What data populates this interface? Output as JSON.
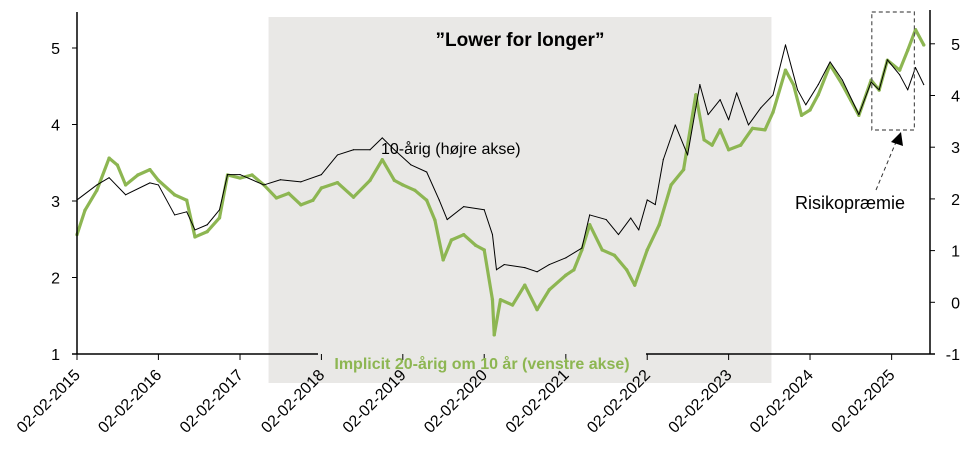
{
  "chart_data": {
    "type": "line",
    "title": "",
    "annotations": {
      "period_label": "”Lower for longer”",
      "period_shading": {
        "start": "2017-06-10",
        "end": "2023-08-13",
        "color": "#e9e8e6"
      },
      "risk_premium_label": "Risikopræmie",
      "risk_premium_box": {
        "start": "2024-11-05",
        "end": "2025-05-15"
      }
    },
    "x_ticks": [
      "02-02-2015",
      "02-02-2016",
      "02-02-2017",
      "02-02-2018",
      "02-02-2019",
      "02-02-2020",
      "02-02-2021",
      "02-02-2022",
      "02-02-2023",
      "02-02-2024",
      "02-02-2025"
    ],
    "xlim": [
      "2015-02-02",
      "2025-07-24"
    ],
    "y_left": {
      "ticks": [
        1,
        2,
        3,
        4,
        5
      ],
      "ylim": [
        1,
        5.45
      ]
    },
    "y_right": {
      "ticks": [
        -1,
        0,
        1,
        2,
        3,
        4,
        5
      ],
      "ylim": [
        -1,
        5.6
      ]
    },
    "grid": false,
    "series": [
      {
        "name": "Implicit 20-årig om 10 år (venstre akse)",
        "axis": "left",
        "color": "#8db652",
        "points": [
          [
            "2015-02-02",
            2.56
          ],
          [
            "2015-03-10",
            2.88
          ],
          [
            "2015-05-02",
            3.14
          ],
          [
            "2015-06-26",
            3.56
          ],
          [
            "2015-08-02",
            3.47
          ],
          [
            "2015-09-08",
            3.21
          ],
          [
            "2015-11-02",
            3.34
          ],
          [
            "2015-12-26",
            3.41
          ],
          [
            "2016-02-02",
            3.27
          ],
          [
            "2016-04-15",
            3.08
          ],
          [
            "2016-06-08",
            3.01
          ],
          [
            "2016-07-15",
            2.53
          ],
          [
            "2016-09-08",
            2.6
          ],
          [
            "2016-11-02",
            2.78
          ],
          [
            "2016-12-08",
            3.34
          ],
          [
            "2017-02-02",
            3.3
          ],
          [
            "2017-03-28",
            3.34
          ],
          [
            "2017-05-20",
            3.21
          ],
          [
            "2017-07-15",
            3.04
          ],
          [
            "2017-09-08",
            3.1
          ],
          [
            "2017-11-02",
            2.95
          ],
          [
            "2017-12-26",
            3.01
          ],
          [
            "2018-02-02",
            3.17
          ],
          [
            "2018-04-15",
            3.24
          ],
          [
            "2018-06-26",
            3.05
          ],
          [
            "2018-09-08",
            3.27
          ],
          [
            "2018-11-02",
            3.54
          ],
          [
            "2018-12-26",
            3.27
          ],
          [
            "2019-02-02",
            3.21
          ],
          [
            "2019-03-28",
            3.14
          ],
          [
            "2019-05-20",
            3.01
          ],
          [
            "2019-06-26",
            2.75
          ],
          [
            "2019-08-02",
            2.23
          ],
          [
            "2019-09-08",
            2.49
          ],
          [
            "2019-11-02",
            2.56
          ],
          [
            "2019-12-26",
            2.42
          ],
          [
            "2020-02-02",
            2.36
          ],
          [
            "2020-03-10",
            1.71
          ],
          [
            "2020-03-18",
            1.25
          ],
          [
            "2020-04-15",
            1.71
          ],
          [
            "2020-06-08",
            1.64
          ],
          [
            "2020-08-02",
            1.9
          ],
          [
            "2020-09-26",
            1.58
          ],
          [
            "2020-11-20",
            1.84
          ],
          [
            "2021-02-02",
            2.03
          ],
          [
            "2021-03-10",
            2.1
          ],
          [
            "2021-04-15",
            2.36
          ],
          [
            "2021-05-20",
            2.69
          ],
          [
            "2021-07-15",
            2.36
          ],
          [
            "2021-09-08",
            2.29
          ],
          [
            "2021-11-02",
            2.1
          ],
          [
            "2021-12-08",
            1.9
          ],
          [
            "2022-02-02",
            2.36
          ],
          [
            "2022-03-28",
            2.69
          ],
          [
            "2022-05-20",
            3.21
          ],
          [
            "2022-07-15",
            3.41
          ],
          [
            "2022-09-08",
            4.39
          ],
          [
            "2022-10-15",
            3.8
          ],
          [
            "2022-11-20",
            3.73
          ],
          [
            "2022-12-26",
            3.93
          ],
          [
            "2023-02-02",
            3.67
          ],
          [
            "2023-03-28",
            3.73
          ],
          [
            "2023-05-20",
            3.95
          ],
          [
            "2023-07-15",
            3.93
          ],
          [
            "2023-08-20",
            4.16
          ],
          [
            "2023-10-15",
            4.71
          ],
          [
            "2023-11-20",
            4.52
          ],
          [
            "2023-12-26",
            4.12
          ],
          [
            "2024-02-02",
            4.19
          ],
          [
            "2024-03-10",
            4.39
          ],
          [
            "2024-05-02",
            4.78
          ],
          [
            "2024-06-26",
            4.52
          ],
          [
            "2024-08-02",
            4.32
          ],
          [
            "2024-09-08",
            4.12
          ],
          [
            "2024-11-02",
            4.58
          ],
          [
            "2024-12-08",
            4.45
          ],
          [
            "2025-01-14",
            4.84
          ],
          [
            "2025-03-10",
            4.71
          ],
          [
            "2025-04-15",
            4.97
          ],
          [
            "2025-05-20",
            5.24
          ],
          [
            "2025-06-26",
            5.04
          ]
        ]
      },
      {
        "name": "10-årig (højre akse)",
        "axis": "right",
        "color": "#000000",
        "points": [
          [
            "2015-02-02",
            1.98
          ],
          [
            "2015-05-02",
            2.27
          ],
          [
            "2015-06-26",
            2.41
          ],
          [
            "2015-09-08",
            2.08
          ],
          [
            "2015-12-26",
            2.31
          ],
          [
            "2016-02-02",
            2.27
          ],
          [
            "2016-04-15",
            1.69
          ],
          [
            "2016-06-08",
            1.75
          ],
          [
            "2016-07-15",
            1.4
          ],
          [
            "2016-09-08",
            1.5
          ],
          [
            "2016-11-02",
            1.79
          ],
          [
            "2016-12-08",
            2.47
          ],
          [
            "2017-02-02",
            2.47
          ],
          [
            "2017-05-20",
            2.27
          ],
          [
            "2017-08-02",
            2.37
          ],
          [
            "2017-11-02",
            2.33
          ],
          [
            "2018-02-02",
            2.47
          ],
          [
            "2018-04-15",
            2.85
          ],
          [
            "2018-06-26",
            2.95
          ],
          [
            "2018-09-08",
            2.95
          ],
          [
            "2018-11-02",
            3.18
          ],
          [
            "2018-12-26",
            2.95
          ],
          [
            "2019-03-10",
            2.66
          ],
          [
            "2019-05-20",
            2.52
          ],
          [
            "2019-07-15",
            1.98
          ],
          [
            "2019-08-20",
            1.6
          ],
          [
            "2019-11-02",
            1.85
          ],
          [
            "2020-02-02",
            1.79
          ],
          [
            "2020-03-10",
            1.31
          ],
          [
            "2020-03-28",
            0.63
          ],
          [
            "2020-05-02",
            0.73
          ],
          [
            "2020-08-02",
            0.67
          ],
          [
            "2020-09-26",
            0.59
          ],
          [
            "2020-11-20",
            0.73
          ],
          [
            "2021-02-02",
            0.86
          ],
          [
            "2021-04-15",
            1.05
          ],
          [
            "2021-05-20",
            1.69
          ],
          [
            "2021-08-02",
            1.6
          ],
          [
            "2021-09-26",
            1.31
          ],
          [
            "2021-11-20",
            1.63
          ],
          [
            "2021-12-26",
            1.4
          ],
          [
            "2022-02-02",
            1.98
          ],
          [
            "2022-03-10",
            1.89
          ],
          [
            "2022-04-15",
            2.76
          ],
          [
            "2022-06-08",
            3.43
          ],
          [
            "2022-08-02",
            2.85
          ],
          [
            "2022-09-26",
            4.21
          ],
          [
            "2022-11-02",
            3.63
          ],
          [
            "2022-12-26",
            3.92
          ],
          [
            "2023-02-02",
            3.53
          ],
          [
            "2023-03-10",
            4.05
          ],
          [
            "2023-05-02",
            3.43
          ],
          [
            "2023-06-26",
            3.76
          ],
          [
            "2023-08-20",
            4.01
          ],
          [
            "2023-10-15",
            4.98
          ],
          [
            "2023-12-08",
            4.11
          ],
          [
            "2024-01-14",
            3.82
          ],
          [
            "2024-03-10",
            4.21
          ],
          [
            "2024-05-02",
            4.65
          ],
          [
            "2024-06-26",
            4.3
          ],
          [
            "2024-09-08",
            3.63
          ],
          [
            "2024-11-02",
            4.26
          ],
          [
            "2024-12-08",
            4.11
          ],
          [
            "2025-01-14",
            4.69
          ],
          [
            "2025-03-10",
            4.4
          ],
          [
            "2025-04-15",
            4.11
          ],
          [
            "2025-05-20",
            4.54
          ],
          [
            "2025-06-26",
            4.21
          ]
        ]
      }
    ]
  }
}
